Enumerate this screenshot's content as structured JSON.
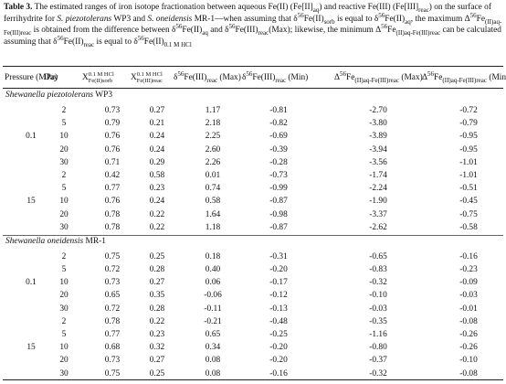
{
  "caption": [
    "Table 3.",
    " The estimated ranges of iron isotope fractionation between aqueous Fe(II) (Fe[II]",
    "aq",
    ") and reactive Fe(III) (Fe[III]",
    "reac",
    ") on the surface of ferrihydrite for ",
    "S. piezotolerans",
    " WP3 and ",
    "S. oneidensis",
    " MR-1—when assuming that δ",
    "56",
    "Fe(II)",
    "sorb",
    " is equal to δ",
    "56",
    "Fe(II)",
    "aq",
    ", the maximum Δ",
    "56",
    "Fe",
    "(II)aq-Fe(III)reac",
    " is obtained from the difference between δ",
    "56",
    "Fe(II)",
    "aq",
    " and δ",
    "56",
    "Fe(III)",
    "reac",
    "(Max); likewise, the minimum Δ",
    "56",
    "Fe",
    "(II)aq-Fe(III)reac",
    " can be calculated assuming that δ",
    "56",
    "Fe(II)",
    "reac",
    " is equal to δ",
    "56",
    "Fe(II)",
    "0.1 M HCl"
  ],
  "table": {
    "headers": [
      [
        "Pressure (MPa)"
      ],
      [
        "Day"
      ],
      [
        "X",
        "0.1 M HCl",
        "Fe(II)sorb"
      ],
      [
        "X",
        "0.1 M HCl",
        "Fe(III)reac"
      ],
      [
        "δ",
        "56",
        "Fe(III)",
        "reac",
        " (Max)"
      ],
      [
        "δ",
        "56",
        "Fe(III)",
        "reac",
        " (Min)"
      ],
      [
        "Δ",
        "56",
        "Fe",
        "(II)aq-Fe(III)reac",
        " (Max)"
      ],
      [
        "Δ",
        "56",
        "Fe",
        "(II)aq-Fe(III)reac",
        " (Min)"
      ]
    ],
    "groups": [
      {
        "title": [
          "Shewanella piezotolerans",
          " WP3"
        ],
        "blocks": [
          {
            "pressure": "0.1",
            "rows": [
              [
                "2",
                "0.73",
                "0.27",
                "1.17",
                "-0.81",
                "-2.70",
                "-0.72"
              ],
              [
                "5",
                "0.79",
                "0.21",
                "2.18",
                "-0.82",
                "-3.80",
                "-0.79"
              ],
              [
                "10",
                "0.76",
                "0.24",
                "2.25",
                "-0.69",
                "-3.89",
                "-0.95"
              ],
              [
                "20",
                "0.76",
                "0.24",
                "2.60",
                "-0.39",
                "-3.94",
                "-0.95"
              ],
              [
                "30",
                "0.71",
                "0.29",
                "2.26",
                "-0.28",
                "-3.56",
                "-1.01"
              ]
            ]
          },
          {
            "pressure": "15",
            "rows": [
              [
                "2",
                "0.42",
                "0.58",
                "0.01",
                "-0.73",
                "-1.74",
                "-1.01"
              ],
              [
                "5",
                "0.77",
                "0.23",
                "0.74",
                "-0.99",
                "-2.24",
                "-0.51"
              ],
              [
                "10",
                "0.76",
                "0.24",
                "0.58",
                "-0.87",
                "-1.90",
                "-0.45"
              ],
              [
                "20",
                "0.78",
                "0.22",
                "1.64",
                "-0.98",
                "-3.37",
                "-0.75"
              ],
              [
                "30",
                "0.78",
                "0.22",
                "1.18",
                "-0.87",
                "-2.62",
                "-0.58"
              ]
            ]
          }
        ]
      },
      {
        "title": [
          "Shewanella oneidensis",
          " MR-1"
        ],
        "blocks": [
          {
            "pressure": "0.1",
            "rows": [
              [
                "2",
                "0.75",
                "0.25",
                "0.18",
                "-0.31",
                "-0.65",
                "-0.16"
              ],
              [
                "5",
                "0.72",
                "0.28",
                "0.40",
                "-0.20",
                "-0.83",
                "-0.23"
              ],
              [
                "10",
                "0.73",
                "0.27",
                "0.06",
                "-0.17",
                "-0.32",
                "-0.09"
              ],
              [
                "20",
                "0.65",
                "0.35",
                "-0.06",
                "-0.12",
                "-0.10",
                "-0.03"
              ],
              [
                "30",
                "0.72",
                "0.28",
                "-0.11",
                "-0.13",
                "-0.03",
                "-0.01"
              ]
            ]
          },
          {
            "pressure": "15",
            "rows": [
              [
                "2",
                "0.78",
                "0.22",
                "-0.21",
                "-0.48",
                "-0.35",
                "-0.08"
              ],
              [
                "5",
                "0.77",
                "0.23",
                "0.65",
                "-0.25",
                "-1.16",
                "-0.26"
              ],
              [
                "10",
                "0.68",
                "0.32",
                "0.34",
                "-0.20",
                "-0.80",
                "-0.26"
              ],
              [
                "20",
                "0.73",
                "0.27",
                "0.08",
                "-0.20",
                "-0.37",
                "-0.10"
              ],
              [
                "30",
                "0.75",
                "0.25",
                "0.08",
                "-0.16",
                "-0.32",
                "-0.08"
              ]
            ]
          }
        ]
      }
    ]
  }
}
